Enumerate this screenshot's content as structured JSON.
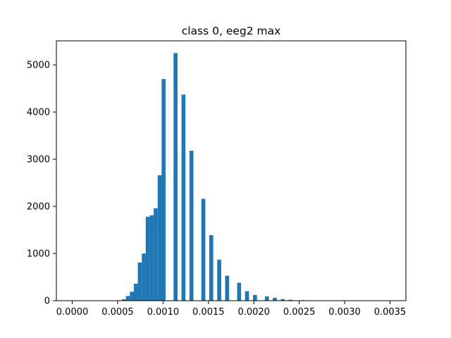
{
  "chart_data": {
    "type": "bar",
    "title": "class 0, eeg2 max",
    "xlabel": "",
    "ylabel": "",
    "xlim": [
      -0.000175,
      0.003675
    ],
    "ylim": [
      0,
      5510
    ],
    "grid": false,
    "bar_color": "#1f77b4",
    "bin_width": 4.37e-05,
    "x_ticks": [
      0.0,
      0.0005,
      0.001,
      0.0015,
      0.002,
      0.0025,
      0.003,
      0.0035
    ],
    "x_tick_labels": [
      "0.0000",
      "0.0005",
      "0.0010",
      "0.0015",
      "0.0020",
      "0.0025",
      "0.0030",
      "0.0035"
    ],
    "y_ticks": [
      0,
      1000,
      2000,
      3000,
      4000,
      5000
    ],
    "y_tick_labels": [
      "0",
      "1000",
      "2000",
      "3000",
      "4000",
      "5000"
    ],
    "bins": [
      {
        "x": 0.000547,
        "value": 30
      },
      {
        "x": 0.000591,
        "value": 100
      },
      {
        "x": 0.000635,
        "value": 190
      },
      {
        "x": 0.000678,
        "value": 360
      },
      {
        "x": 0.000722,
        "value": 810
      },
      {
        "x": 0.000766,
        "value": 1000
      },
      {
        "x": 0.000809,
        "value": 1780
      },
      {
        "x": 0.000853,
        "value": 1810
      },
      {
        "x": 0.000897,
        "value": 1960
      },
      {
        "x": 0.000941,
        "value": 2660
      },
      {
        "x": 0.000984,
        "value": 4700
      },
      {
        "x": 0.001116,
        "value": 5250
      },
      {
        "x": 0.001203,
        "value": 4370
      },
      {
        "x": 0.001291,
        "value": 3180
      },
      {
        "x": 0.001422,
        "value": 2160
      },
      {
        "x": 0.001509,
        "value": 1390
      },
      {
        "x": 0.001597,
        "value": 870
      },
      {
        "x": 0.001684,
        "value": 530
      },
      {
        "x": 0.001816,
        "value": 380
      },
      {
        "x": 0.001903,
        "value": 200
      },
      {
        "x": 0.001991,
        "value": 120
      },
      {
        "x": 0.002122,
        "value": 90
      },
      {
        "x": 0.002209,
        "value": 60
      },
      {
        "x": 0.002297,
        "value": 35
      },
      {
        "x": 0.002384,
        "value": 20
      },
      {
        "x": 0.002516,
        "value": 12
      },
      {
        "x": 0.002603,
        "value": 8
      }
    ]
  }
}
